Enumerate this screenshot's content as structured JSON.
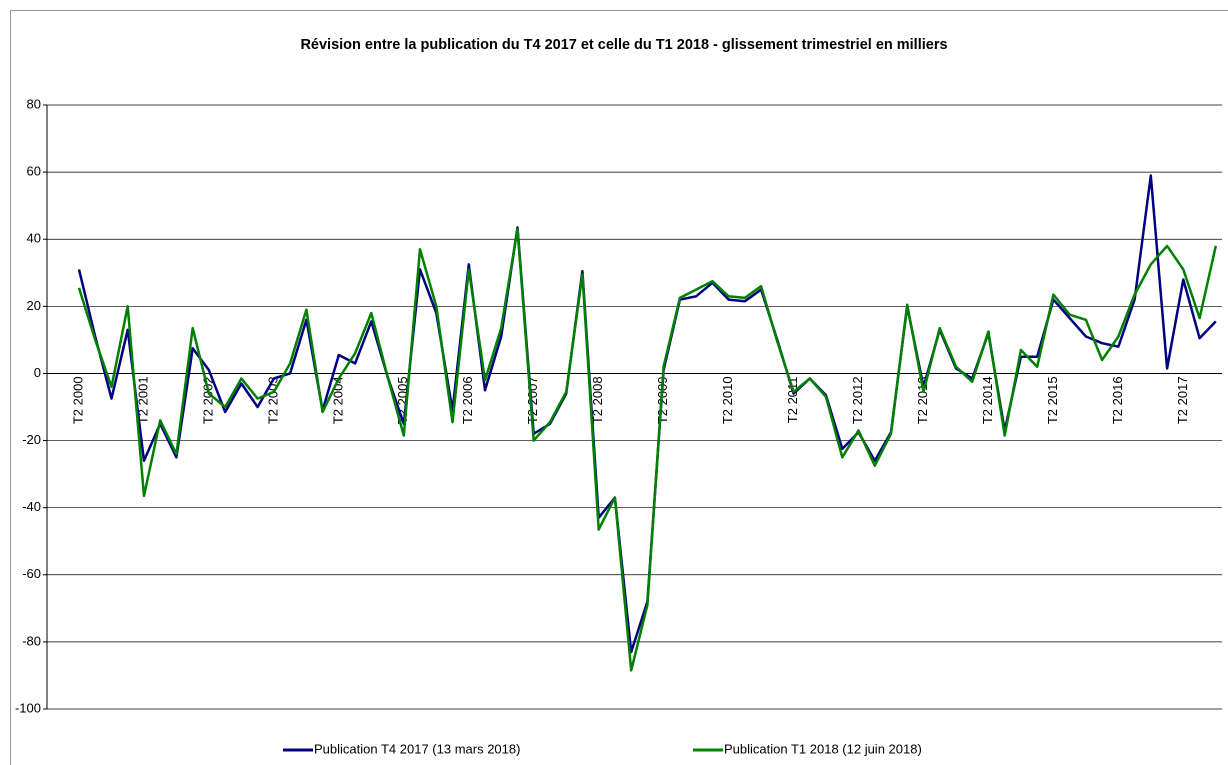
{
  "chart_data": {
    "type": "line",
    "title": "Révision entre la publication du T4 2017 et celle du T1 2018 - glissement trimestriel en milliers",
    "categories": [
      "T2 2000",
      null,
      null,
      null,
      "T2 2001",
      null,
      null,
      null,
      "T2 2002",
      null,
      null,
      null,
      "T2 2003",
      null,
      null,
      null,
      "T2 2004",
      null,
      null,
      null,
      "T2 2005",
      null,
      null,
      null,
      "T2 2006",
      null,
      null,
      null,
      "T2 2007",
      null,
      null,
      null,
      "T2 2008",
      null,
      null,
      null,
      "T2 2009",
      null,
      null,
      null,
      "T2 2010",
      null,
      null,
      null,
      "T2 2011",
      null,
      null,
      null,
      "T2 2012",
      null,
      null,
      null,
      "T2 2013",
      null,
      null,
      null,
      "T2 2014",
      null,
      null,
      null,
      "T2 2015",
      null,
      null,
      null,
      "T2 2016",
      null,
      null,
      null,
      "T2 2017",
      null,
      null
    ],
    "series": [
      {
        "name": "Publication T4 2017 (13 mars 2018)",
        "color": "#000080",
        "values": [
          31,
          11,
          -7.5,
          13,
          -26,
          -15,
          -25,
          7.5,
          1,
          -11.5,
          -3,
          -10,
          -1.5,
          0,
          16,
          -11,
          5.5,
          3,
          15.5,
          -1,
          -15,
          31,
          18,
          -11,
          32.5,
          -5,
          11,
          43.5,
          -18,
          -15,
          -6,
          30.5,
          -43,
          -37,
          -83,
          -68,
          1,
          22,
          23,
          27,
          22,
          21.5,
          25,
          10,
          -6,
          -1.5,
          -6.5,
          -22.5,
          -17.5,
          -26,
          -17.5,
          20,
          -4,
          13,
          1.5,
          -1.5,
          12,
          -17,
          5,
          5,
          22,
          16.5,
          11,
          9,
          8,
          22,
          59,
          1.5,
          28,
          10.5,
          15.5
        ]
      },
      {
        "name": "Publication T1 2018 (12 juin 2018)",
        "color": "#008000",
        "values": [
          25.5,
          10,
          -4,
          20,
          -36.5,
          -14,
          -24,
          13.5,
          -6,
          -10,
          -1.5,
          -7.5,
          -5.5,
          3,
          19,
          -11.5,
          -1.5,
          6,
          18,
          -1,
          -18.5,
          37,
          20,
          -14.5,
          31,
          -2,
          13.5,
          43,
          -20,
          -14.5,
          -5.5,
          29.5,
          -46.5,
          -37,
          -88.5,
          -69,
          2,
          22.5,
          25,
          27.5,
          23,
          22.5,
          26,
          9.5,
          -5.5,
          -1.5,
          -7,
          -25,
          -17,
          -27.5,
          -18,
          20.5,
          -5.5,
          13.5,
          2,
          -2.5,
          12.5,
          -18.5,
          7,
          2,
          23.5,
          17.5,
          16,
          4,
          11,
          23.5,
          32.5,
          38,
          31,
          16.5,
          38
        ]
      }
    ],
    "ylim": [
      -100,
      80
    ],
    "yticks": [
      -100,
      -80,
      -60,
      -40,
      -20,
      0,
      20,
      40,
      60,
      80
    ],
    "grid": true
  }
}
